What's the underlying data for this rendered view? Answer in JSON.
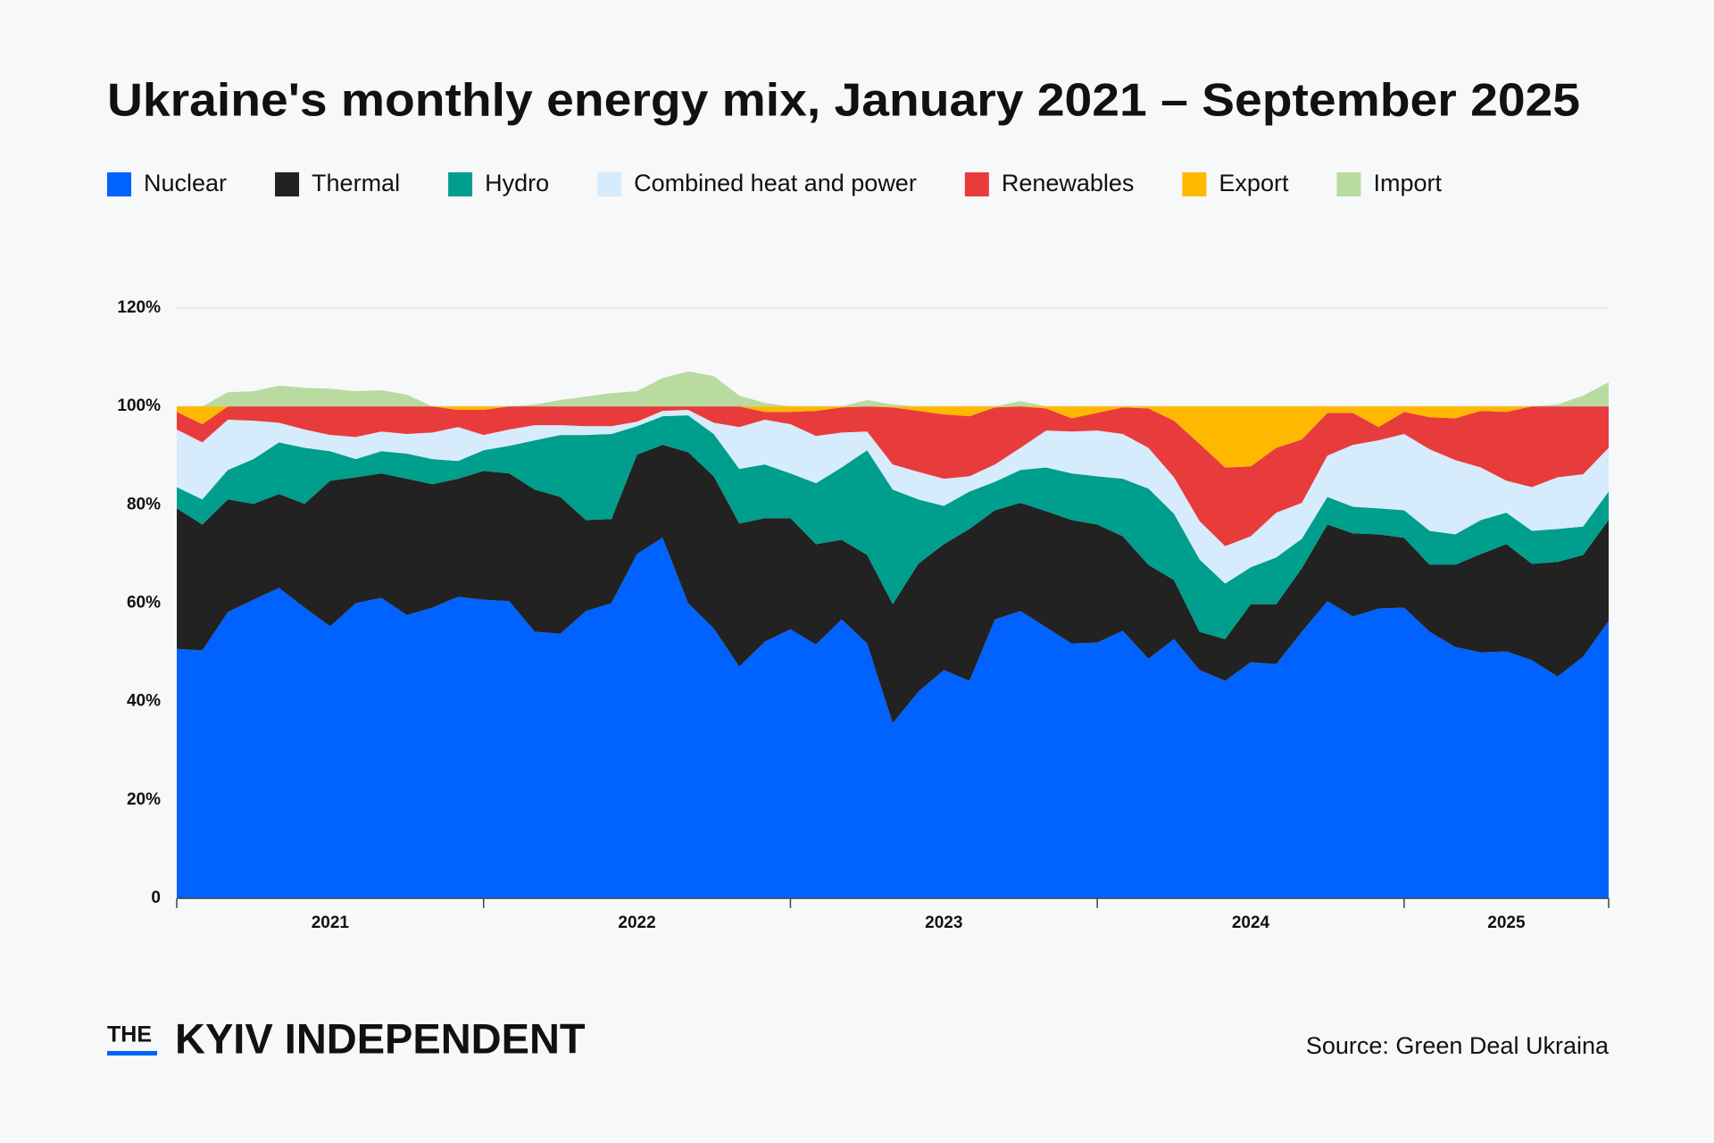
{
  "chart_data": {
    "type": "stacked_area",
    "title": "Ukraine's monthly energy mix, January 2021 – September 2025",
    "categories": [
      null,
      null,
      null,
      null,
      null,
      null,
      "2021",
      null,
      null,
      null,
      null,
      null,
      null,
      null,
      null,
      null,
      null,
      null,
      "2022",
      null,
      null,
      null,
      null,
      null,
      null,
      null,
      null,
      null,
      null,
      null,
      "2023",
      null,
      null,
      null,
      null,
      null,
      null,
      null,
      null,
      null,
      null,
      null,
      "2024",
      null,
      null,
      null,
      null,
      null,
      null,
      null,
      null,
      null,
      "2025",
      null,
      null,
      null,
      null
    ],
    "series": [
      {
        "name": "Nuclear",
        "color": "#0062ff",
        "values": [
          50.7,
          50.4,
          58.2,
          60.7,
          63.1,
          59.1,
          55.3,
          60,
          61.1,
          57.6,
          59.1,
          61.3,
          60.7,
          60.4,
          54.2,
          53.8,
          58.4,
          60,
          70,
          73.3,
          60,
          54.9,
          47.1,
          52.2,
          54.7,
          51.6,
          56.7,
          51.8,
          35.6,
          42,
          46.4,
          44.2,
          56.7,
          58.4,
          55.1,
          51.8,
          52,
          54.4,
          48.7,
          52.7,
          46.4,
          44.2,
          48,
          47.6,
          54.2,
          60.4,
          57.3,
          58.9,
          59.1,
          54.2,
          51.1,
          50,
          50.2,
          48.4,
          45.1,
          49.1,
          56.4
        ]
      },
      {
        "name": "Thermal",
        "color": "#222222",
        "values": [
          28.6,
          25.6,
          22.9,
          19.5,
          19.1,
          21.1,
          29.6,
          25.6,
          25.3,
          27.7,
          25.1,
          24,
          26.2,
          26,
          28.9,
          27.8,
          18.5,
          17.1,
          20.2,
          18.9,
          30.7,
          30.9,
          29.1,
          25.1,
          22.6,
          20.4,
          16.2,
          18,
          24.2,
          26,
          25.6,
          30.9,
          22.2,
          22,
          23.6,
          25.1,
          24,
          19.2,
          19.1,
          12,
          7.8,
          8.5,
          11.8,
          12.2,
          12.9,
          15.6,
          16.9,
          15.1,
          14.2,
          13.6,
          16.7,
          20,
          21.8,
          19.6,
          23.3,
          20.7,
          20.5
        ]
      },
      {
        "name": "Hydro",
        "color": "#009e8c",
        "values": [
          4.3,
          5.1,
          6,
          9.1,
          10.5,
          11.4,
          6,
          3.7,
          4.5,
          5.1,
          5.1,
          3.6,
          4.2,
          5.6,
          10,
          12.6,
          17.3,
          17.3,
          5.8,
          5.8,
          7.5,
          8.6,
          11.1,
          10.9,
          9.1,
          12.4,
          14.7,
          21.3,
          23.3,
          13.1,
          7.8,
          7.6,
          5.8,
          6.7,
          8.9,
          9.5,
          9.8,
          11.7,
          15.5,
          13.5,
          14.7,
          11.3,
          7.5,
          9.5,
          6,
          5.6,
          5.4,
          5.3,
          5.6,
          6.9,
          6.2,
          6.9,
          6.4,
          6.7,
          6.7,
          5.8,
          5.8
        ]
      },
      {
        "name": "Combined heat and power",
        "color": "#d6ebfb",
        "values": [
          11.7,
          11.6,
          10.2,
          7.8,
          4,
          3.7,
          3.3,
          4.5,
          4,
          4,
          5.4,
          6.9,
          3.1,
          3.3,
          3.1,
          2,
          1.8,
          1.6,
          0.9,
          1.1,
          1.1,
          2.3,
          8.5,
          9.1,
          10,
          9.6,
          7.1,
          3.8,
          5.1,
          5.6,
          5.5,
          3.1,
          3.5,
          4.5,
          7.5,
          8.5,
          9.3,
          9.1,
          8.3,
          7.4,
          7.8,
          7.6,
          6.3,
          9.1,
          7.3,
          8.4,
          12.6,
          13.8,
          15.5,
          16.6,
          15.1,
          10.7,
          6.5,
          8.9,
          10.5,
          10.6,
          8.9
        ]
      },
      {
        "name": "Renewables",
        "color": "#e83c3c",
        "values": [
          3.6,
          3.7,
          2.7,
          2.9,
          3.3,
          4.7,
          5.8,
          6.2,
          5.1,
          5.6,
          5.3,
          3.5,
          5.1,
          4.7,
          3.8,
          3.8,
          4,
          4,
          3.1,
          0.9,
          0.7,
          3.3,
          4.2,
          1.6,
          2.5,
          5.1,
          5.1,
          5.1,
          11.6,
          12.4,
          13.1,
          12.2,
          11.6,
          8.4,
          4.5,
          2.7,
          3.6,
          5.4,
          8,
          11.5,
          15.7,
          16,
          14.2,
          13.2,
          12.9,
          8.7,
          6.5,
          2.7,
          4.5,
          6.5,
          8.5,
          11.5,
          14,
          16.4,
          14.4,
          13.8,
          8.4
        ]
      },
      {
        "name": "Export",
        "color": "#ffb800",
        "values": [
          1.1,
          3.6,
          0,
          0,
          0,
          0,
          0,
          0,
          0,
          0,
          0,
          0.7,
          0.7,
          0,
          0,
          0,
          0,
          0,
          0,
          0,
          0,
          0,
          0,
          1.1,
          1.1,
          0.9,
          0.2,
          0,
          0.2,
          0.9,
          1.6,
          2,
          0.2,
          0,
          0.4,
          2.4,
          1.3,
          0.2,
          0.4,
          2.9,
          7.6,
          12.4,
          12.2,
          8.4,
          6.7,
          1.3,
          1.3,
          4.2,
          1.1,
          2.2,
          2.4,
          0.9,
          1.1,
          0,
          0,
          0,
          0
        ]
      },
      {
        "name": "Import",
        "color": "#b9dba0",
        "values": [
          0,
          0,
          2.9,
          3.1,
          4.2,
          3.8,
          3.6,
          3.1,
          3.3,
          2.4,
          0,
          0,
          0,
          0,
          0.4,
          1.3,
          2,
          2.7,
          3.1,
          5.8,
          7.1,
          6.2,
          2.2,
          0.7,
          0,
          0,
          0,
          1.3,
          0.4,
          0,
          0,
          0,
          0,
          1.1,
          0,
          0,
          0,
          0,
          0,
          0,
          0,
          0,
          0,
          0,
          0,
          0,
          0,
          0,
          0,
          0,
          0,
          0,
          0,
          0,
          0.4,
          2.2,
          4.9
        ]
      }
    ],
    "ylim": [
      0,
      120
    ],
    "yticks": [
      0,
      {
        "value": 20,
        "label": "20%"
      },
      {
        "value": 40,
        "label": "40%"
      },
      {
        "value": 60,
        "label": "60%"
      },
      {
        "value": 80,
        "label": "80%"
      },
      {
        "value": 100,
        "label": "100%"
      },
      {
        "value": 120,
        "label": "120%"
      }
    ],
    "grid": true,
    "legend": "top"
  },
  "brand": {
    "prefix": "THE",
    "name": "KYIV INDEPENDENT"
  },
  "source": "Source: Green Deal Ukraina"
}
